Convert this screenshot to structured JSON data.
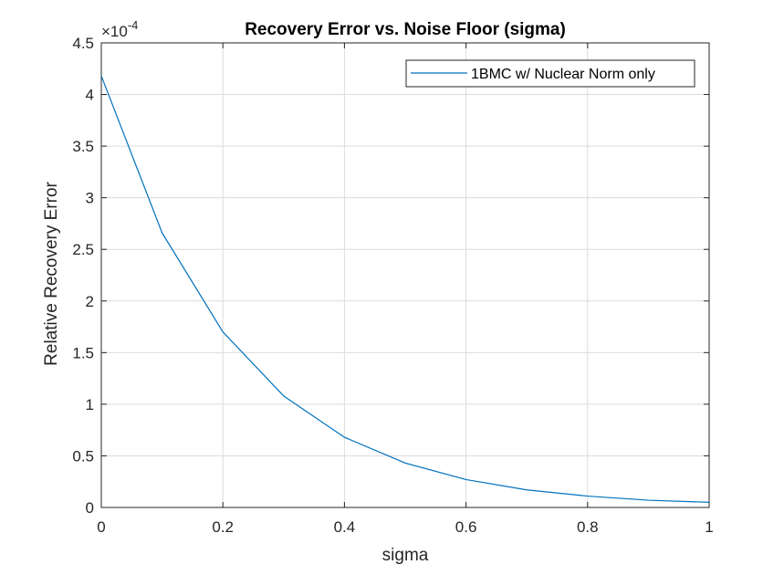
{
  "chart_data": {
    "type": "line",
    "title": "Recovery Error vs. Noise Floor (sigma)",
    "xlabel": "sigma",
    "ylabel": "Relative Recovery Error",
    "y_exponent": "-4",
    "y_multiplier": "×10",
    "xlim": [
      0,
      1
    ],
    "ylim": [
      0,
      4.5
    ],
    "x_ticks": [
      "0",
      "0.2",
      "0.4",
      "0.6",
      "0.8",
      "1"
    ],
    "y_ticks": [
      "0",
      "0.5",
      "1",
      "1.5",
      "2",
      "2.5",
      "3",
      "3.5",
      "4",
      "4.5"
    ],
    "grid": true,
    "legend_position": "top-right",
    "series": [
      {
        "name": "1BMC w/ Nuclear Norm only",
        "color": "#0072BD",
        "x": [
          0,
          0.1,
          0.2,
          0.3,
          0.4,
          0.5,
          0.6,
          0.7,
          0.8,
          0.9,
          1.0
        ],
        "values": [
          4.18,
          2.66,
          1.7,
          1.08,
          0.68,
          0.43,
          0.27,
          0.17,
          0.11,
          0.07,
          0.05
        ]
      }
    ]
  }
}
